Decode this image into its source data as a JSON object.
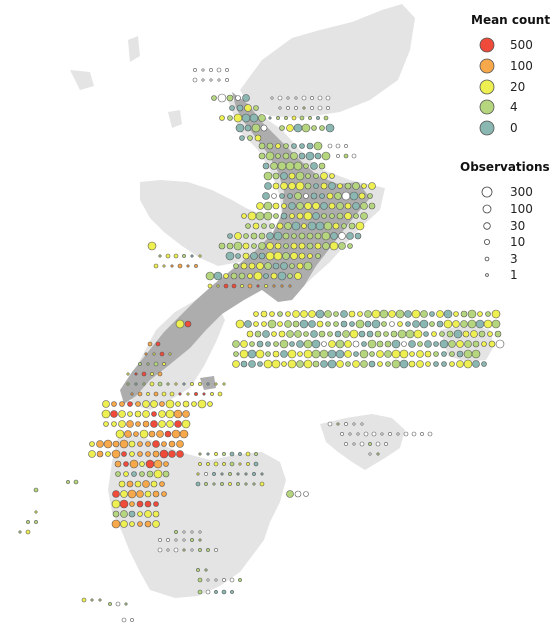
{
  "legend_mean": {
    "title": "Mean count",
    "items": [
      {
        "label": "500",
        "color": "#f04a3a"
      },
      {
        "label": "100",
        "color": "#f7a84a"
      },
      {
        "label": "20",
        "color": "#eef052"
      },
      {
        "label": "4",
        "color": "#b5d67e"
      },
      {
        "label": "0",
        "color": "#8ab7b1"
      }
    ]
  },
  "legend_obs": {
    "title": "Observations",
    "items": [
      {
        "label": "300"
      },
      {
        "label": "100"
      },
      {
        "label": "30"
      },
      {
        "label": "10"
      },
      {
        "label": "3"
      },
      {
        "label": "1"
      }
    ]
  },
  "colors": {
    "land_background": "#e4e4e4",
    "land_highlight": "#adadad",
    "empty_marker": "#ffffff",
    "marker_stroke": "#555555"
  }
}
